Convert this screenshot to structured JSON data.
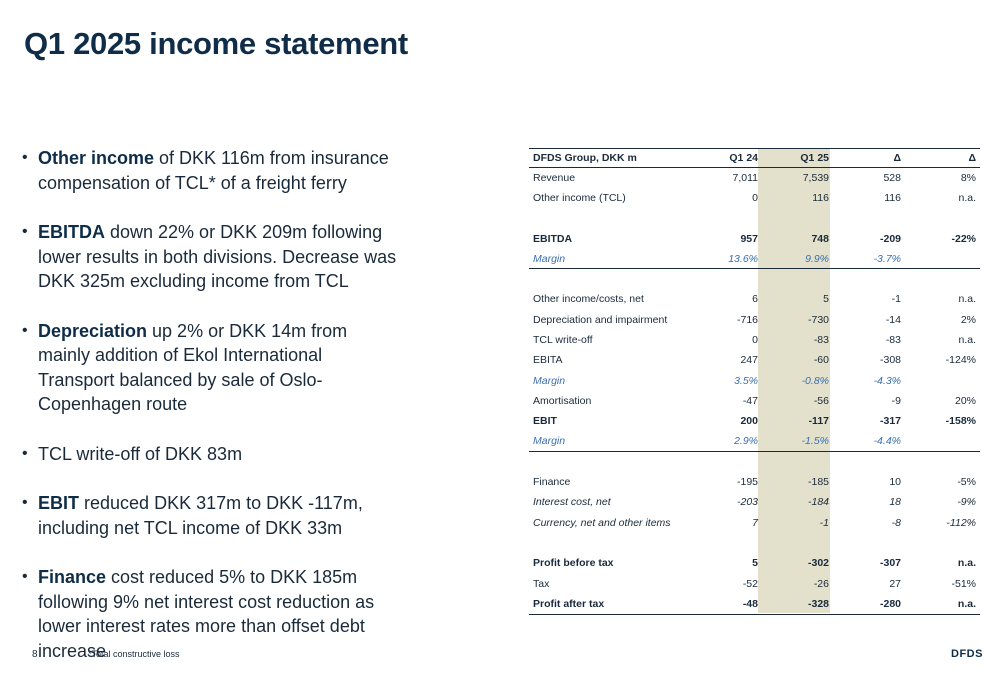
{
  "title": "Q1 2025 income statement",
  "bullets": [
    {
      "bold": "Other income",
      "text": " of DKK 116m from insurance compensation of TCL* of a freight ferry"
    },
    {
      "bold": "EBITDA",
      "text": " down 22% or DKK 209m following lower results in both divisions. Decrease was DKK 325m excluding income from TCL"
    },
    {
      "bold": "Depreciation",
      "text": " up 2% or DKK 14m from mainly addition of Ekol International Transport balanced by sale of Oslo-Copenhagen route"
    },
    {
      "bold": "",
      "text": "TCL write-off of DKK 83m"
    },
    {
      "bold": "EBIT",
      "text": " reduced DKK 317m to DKK -117m, including net TCL income of DKK 33m"
    },
    {
      "bold": "Finance",
      "text": " cost reduced 5% to DKK 185m following 9% net interest cost reduction as lower interest rates more than offset debt increase"
    }
  ],
  "table": {
    "headers": [
      "DFDS Group, DKK m",
      "Q1 24",
      "Q1 25",
      "Δ",
      "Δ"
    ],
    "rows": [
      {
        "cells": [
          "Revenue",
          "7,011",
          "7,539",
          "528",
          "8%"
        ],
        "style": ""
      },
      {
        "cells": [
          "Other income (TCL)",
          "0",
          "116",
          "116",
          "n.a."
        ],
        "style": ""
      },
      {
        "cells": [
          "",
          "",
          "",
          "",
          ""
        ],
        "style": ""
      },
      {
        "cells": [
          "EBITDA",
          "957",
          "748",
          "-209",
          "-22%"
        ],
        "style": "bold"
      },
      {
        "cells": [
          "Margin",
          "13.6%",
          "9.9%",
          "-3.7%",
          ""
        ],
        "style": "margin rule-below"
      },
      {
        "cells": [
          "",
          "",
          "",
          "",
          ""
        ],
        "style": ""
      },
      {
        "cells": [
          "Other income/costs, net",
          "6",
          "5",
          "-1",
          "n.a."
        ],
        "style": ""
      },
      {
        "cells": [
          "Depreciation and impairment",
          "-716",
          "-730",
          "-14",
          "2%"
        ],
        "style": ""
      },
      {
        "cells": [
          "TCL write-off",
          "0",
          "-83",
          "-83",
          "n.a."
        ],
        "style": ""
      },
      {
        "cells": [
          "EBITA",
          "247",
          "-60",
          "-308",
          "-124%"
        ],
        "style": ""
      },
      {
        "cells": [
          "Margin",
          "3.5%",
          "-0.8%",
          "-4.3%",
          ""
        ],
        "style": "margin"
      },
      {
        "cells": [
          "Amortisation",
          "-47",
          "-56",
          "-9",
          "20%"
        ],
        "style": ""
      },
      {
        "cells": [
          "EBIT",
          "200",
          "-117",
          "-317",
          "-158%"
        ],
        "style": "bold"
      },
      {
        "cells": [
          "Margin",
          "2.9%",
          "-1.5%",
          "-4.4%",
          ""
        ],
        "style": "margin rule-below"
      },
      {
        "cells": [
          "",
          "",
          "",
          "",
          ""
        ],
        "style": ""
      },
      {
        "cells": [
          "Finance",
          "-195",
          "-185",
          "10",
          "-5%"
        ],
        "style": ""
      },
      {
        "cells": [
          "Interest cost, net",
          "-203",
          "-184",
          "18",
          "-9%"
        ],
        "style": "italic"
      },
      {
        "cells": [
          "Currency, net and other items",
          "7",
          "-1",
          "-8",
          "-112%"
        ],
        "style": "italic"
      },
      {
        "cells": [
          "",
          "",
          "",
          "",
          ""
        ],
        "style": ""
      },
      {
        "cells": [
          "Profit before tax",
          "5",
          "-302",
          "-307",
          "n.a."
        ],
        "style": "bold"
      },
      {
        "cells": [
          "Tax",
          "-52",
          "-26",
          "27",
          "-51%"
        ],
        "style": ""
      },
      {
        "cells": [
          "Profit after tax",
          "-48",
          "-328",
          "-280",
          "n.a."
        ],
        "style": "bold last"
      }
    ]
  },
  "footer": {
    "page_number": "8",
    "footnote": "*Total constructive loss",
    "logo": "DFDS"
  },
  "colors": {
    "title": "#0f2d48",
    "highlight_column": "#e3e1cb",
    "margin_text": "#3a6fb0"
  }
}
